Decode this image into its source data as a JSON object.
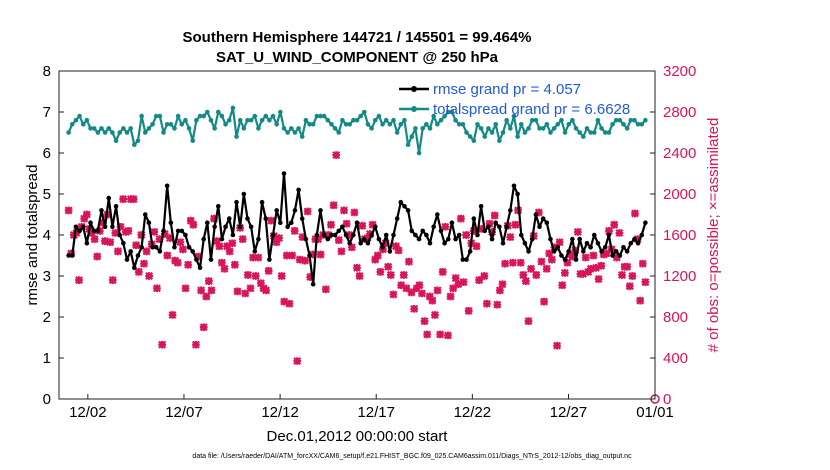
{
  "figure": {
    "title_line1": "Southern Hemisphere 144721 / 145501 = 99.464%",
    "title_line2": "SAT_U_WIND_COMPONENT @ 250 hPa",
    "footnote": "data file: /Users/raeder/DAI/ATM_forcXX/CAM6_setup/f.e21.FHIST_BGC.f09_025.CAM6assim.011/Diags_NTrS_2012-12/obs_diag_output.nc"
  },
  "colors": {
    "rmse": "#000000",
    "spread": "#138a86",
    "obs": "#d8145a",
    "legend_text": "#1f5bd8",
    "right_axis": "#d8145a"
  },
  "chart_data": {
    "type": "line",
    "title": "Southern Hemisphere 144721 / 145501 = 99.464%",
    "subtitle": "SAT_U_WIND_COMPONENT @ 250 hPa",
    "xlabel": "Dec.01,2012 00:00:00 start",
    "ylabel": "rmse and totalspread",
    "y2label": "# of obs: o=possible; ×=assimilated",
    "xlim": [
      0.5,
      31.5
    ],
    "ylim": [
      0,
      8
    ],
    "y2lim": [
      0,
      3200
    ],
    "x_ticks": [
      {
        "x": 2,
        "label": "12/02"
      },
      {
        "x": 7,
        "label": "12/07"
      },
      {
        "x": 12,
        "label": "12/12"
      },
      {
        "x": 17,
        "label": "12/17"
      },
      {
        "x": 22,
        "label": "12/22"
      },
      {
        "x": 27,
        "label": "12/27"
      },
      {
        "x": 32,
        "label": "01/01"
      }
    ],
    "y_ticks": [
      "0",
      "1",
      "2",
      "3",
      "4",
      "5",
      "6",
      "7",
      "8"
    ],
    "y2_ticks": [
      "0",
      "400",
      "800",
      "1200",
      "1600",
      "2000",
      "2400",
      "2800",
      "3200"
    ],
    "series": [
      {
        "name": "rmse grand pr = 4.057",
        "axis": "left",
        "style": "line-dot",
        "values": [
          3.5,
          3.5,
          4.2,
          4.1,
          4.2,
          3.8,
          4.3,
          4.1,
          4.1,
          4.6,
          4.2,
          4.9,
          4.2,
          4.7,
          4.0,
          3.8,
          3.4,
          3.6,
          3.2,
          3.5,
          3.7,
          4.5,
          4.3,
          3.7,
          3.7,
          3.6,
          4.1,
          5.2,
          4.3,
          3.7,
          4.1,
          4.1,
          4.0,
          3.7,
          3.6,
          3.4,
          3.2,
          3.9,
          4.3,
          3.4,
          4.2,
          4.7,
          3.9,
          4.2,
          4.4,
          4.0,
          4.8,
          4.2,
          5.0,
          4.4,
          4.2,
          3.6,
          3.9,
          4.8,
          4.4,
          3.4,
          4.0,
          4.6,
          4.3,
          5.5,
          4.2,
          4.3,
          4.6,
          5.1,
          4.4,
          3.9,
          3.5,
          2.8,
          4.0,
          4.6,
          4.0,
          3.9,
          4.0,
          4.0,
          4.1,
          4.2,
          4.0,
          3.8,
          4.0,
          4.3,
          3.8,
          3.9,
          3.8,
          4.0,
          4.2,
          3.9,
          3.7,
          4.0,
          3.6,
          4.0,
          4.4,
          4.8,
          4.7,
          4.6,
          4.1,
          4.0,
          3.9,
          4.1,
          4.0,
          3.8,
          4.2,
          4.5,
          4.1,
          3.8,
          3.9,
          4.3,
          3.9,
          4.0,
          3.4,
          3.4,
          3.6,
          4.4,
          4.0,
          4.7,
          4.1,
          4.2,
          3.9,
          4.3,
          4.2,
          3.8,
          4.2,
          4.6,
          5.2,
          5.0,
          4.0,
          3.8,
          3.6,
          3.9,
          4.5,
          4.2,
          4.4,
          4.3,
          3.9,
          3.6,
          3.7,
          3.5,
          3.4,
          3.6,
          3.9,
          3.4,
          3.9,
          3.6,
          3.8,
          3.7,
          4.0,
          3.8,
          3.6,
          3.7,
          4.0,
          3.5,
          3.6,
          3.5,
          3.7,
          3.6,
          3.8,
          3.9,
          3.8,
          4.0,
          4.3
        ]
      },
      {
        "name": "totalspread grand pr = 6.6628",
        "axis": "left",
        "style": "line-dot",
        "values": [
          6.5,
          6.7,
          6.8,
          6.9,
          6.7,
          6.8,
          6.6,
          6.6,
          6.5,
          6.6,
          6.5,
          6.6,
          6.5,
          6.3,
          6.5,
          6.6,
          6.5,
          6.6,
          6.2,
          6.3,
          6.9,
          6.5,
          6.6,
          6.7,
          6.9,
          6.9,
          6.5,
          6.7,
          6.7,
          6.6,
          6.9,
          6.7,
          6.8,
          6.6,
          6.3,
          6.8,
          6.9,
          6.9,
          7.0,
          6.8,
          6.6,
          7.0,
          6.9,
          6.7,
          6.8,
          7.1,
          6.4,
          6.8,
          6.6,
          6.8,
          6.8,
          6.9,
          6.6,
          6.8,
          6.9,
          6.8,
          6.9,
          6.7,
          7.0,
          6.6,
          6.5,
          6.6,
          6.5,
          6.6,
          6.4,
          6.8,
          6.7,
          6.7,
          6.9,
          6.9,
          6.9,
          6.8,
          6.7,
          6.6,
          6.5,
          6.8,
          6.7,
          6.7,
          6.8,
          6.8,
          6.9,
          7.0,
          6.7,
          6.6,
          6.8,
          6.9,
          6.7,
          6.8,
          6.7,
          6.8,
          6.5,
          6.7,
          6.8,
          6.2,
          6.4,
          6.6,
          6.0,
          6.6,
          6.7,
          6.6,
          6.9,
          6.7,
          6.8,
          6.9,
          7.0,
          7.0,
          6.8,
          6.7,
          6.7,
          6.5,
          6.4,
          6.3,
          6.7,
          6.6,
          6.4,
          6.6,
          6.5,
          6.7,
          6.3,
          6.5,
          6.8,
          6.6,
          6.9,
          6.4,
          6.7,
          6.5,
          6.6,
          6.8,
          6.8,
          6.6,
          6.6,
          6.7,
          6.5,
          6.6,
          6.7,
          6.8,
          6.5,
          6.7,
          6.8,
          6.6,
          6.5,
          6.4,
          6.6,
          6.5,
          6.5,
          6.8,
          6.6,
          6.5,
          6.5,
          6.7,
          6.8,
          6.8,
          6.7,
          6.6,
          6.8,
          6.8,
          6.7,
          6.7,
          6.8
        ]
      },
      {
        "name": "observations assimilated",
        "axis": "right",
        "style": "markers",
        "values": [
          1840,
          1420,
          1600,
          1620,
          1160,
          1680,
          1760,
          1800,
          1660,
          1620,
          1560,
          1390,
          1640,
          1720,
          1540,
          1800,
          1530,
          1160,
          1620,
          1440,
          1680,
          1950,
          1630,
          1640,
          1950,
          1950,
          1500,
          1240,
          1600,
          1320,
          1440,
          1200,
          1510,
          1630,
          1080,
          1560,
          530,
          1610,
          1400,
          1570,
          820,
          1350,
          1330,
          1530,
          1460,
          1080,
          1310,
          1740,
          1700,
          530,
          1390,
          1060,
          700,
          1000,
          1150,
          1060,
          1760,
          1540,
          1490,
          1330,
          1270,
          1490,
          1440,
          1520,
          1310,
          1050,
          1670,
          1560,
          1030,
          1210,
          1080,
          1380,
          1200,
          1380,
          1130,
          1080,
          1060,
          1250,
          1740,
          1590,
          1530,
          1570,
          1200,
          950,
          1400,
          930,
          1400,
          1640,
          370,
          1360,
          1580,
          1350,
          1830,
          1190,
          1410,
          1560,
          1560,
          1410,
          1600,
          1070,
          1600,
          1700,
          1890,
          2380,
          1550,
          1440,
          1840,
          1710,
          1600,
          1480,
          1820,
          1280,
          1200,
          1690,
          1560,
          1570,
          1610,
          1700,
          1360,
          1400,
          1240,
          1460,
          1520,
          1290,
          1210,
          1020,
          1490,
          1450,
          1110,
          1210,
          1080,
          1340,
          1040,
          880,
          1080,
          1110,
          1030,
          760,
          630,
          1000,
          960,
          820,
          1060,
          630,
          1240,
          1680,
          620,
          1000,
          1080,
          1180,
          1120,
          1760,
          1140,
          1600,
          860,
          1520,
          1640,
          1490,
          1160,
          1660,
          1200,
          930,
          1710,
          1630,
          1790,
          920,
          1060,
          1120,
          1320,
          1690,
          1580,
          1330,
          1700,
          1840,
          1330,
          1210,
          1150,
          760,
          1270,
          1590,
          1210,
          1820,
          1340,
          950,
          1270,
          1420,
          1360,
          1480,
          520,
          1530,
          1110,
          1230,
          1330,
          1410,
          1390,
          1450,
          1630,
          1220,
          1220,
          1380,
          1240,
          1270,
          1400,
          1280,
          1170,
          1300,
          1410,
          1420,
          1640,
          1460,
          1700,
          1380,
          1620,
          1210,
          1290,
          1290,
          1100,
          1200,
          1810,
          1560,
          960,
          1320,
          1140
        ]
      }
    ]
  }
}
